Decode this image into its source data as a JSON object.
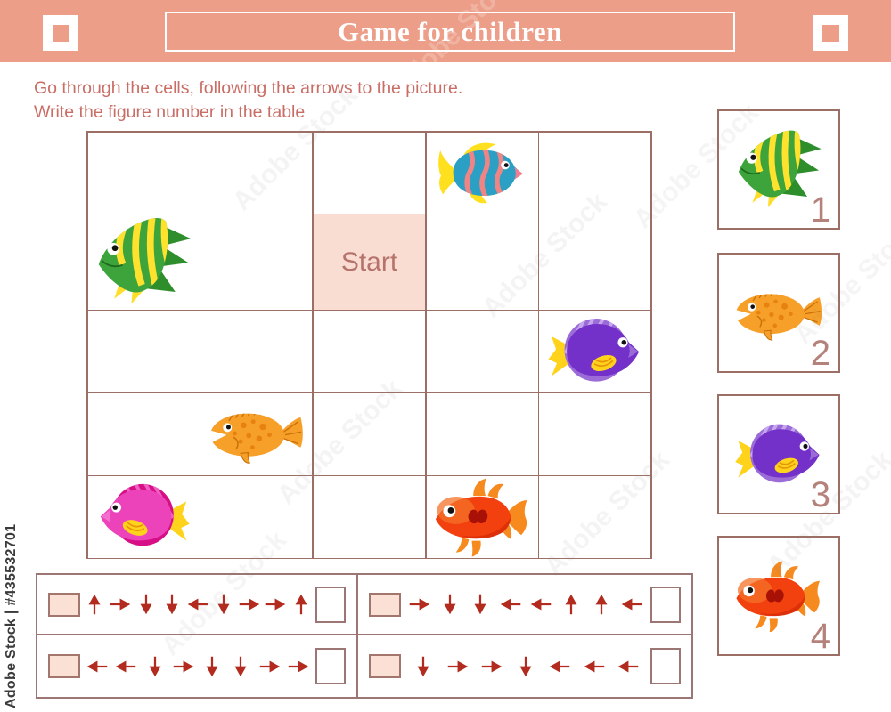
{
  "header": {
    "title": "Game for children"
  },
  "instructions": {
    "line1": "Go through the cells, following the arrows to the picture.",
    "line2": "Write the figure number in the table"
  },
  "grid": {
    "rows": 5,
    "cols": 5,
    "start_label": "Start",
    "start_cell": {
      "row": 2,
      "col": 3
    },
    "fish_cells": [
      {
        "row": 1,
        "col": 4,
        "fish": "blue-striped-fish"
      },
      {
        "row": 2,
        "col": 1,
        "fish": "green-angelfish"
      },
      {
        "row": 3,
        "col": 5,
        "fish": "purple-tang-fish"
      },
      {
        "row": 4,
        "col": 2,
        "fish": "orange-spotted-fish"
      },
      {
        "row": 5,
        "col": 1,
        "fish": "pink-tang-fish"
      },
      {
        "row": 5,
        "col": 4,
        "fish": "red-fish"
      }
    ]
  },
  "answer_key": {
    "items": [
      {
        "number": "1",
        "fish": "green-angelfish"
      },
      {
        "number": "2",
        "fish": "orange-spotted-fish"
      },
      {
        "number": "3",
        "fish": "purple-tang-fish"
      },
      {
        "number": "4",
        "fish": "red-fish"
      }
    ]
  },
  "arrow_table": {
    "cells": [
      {
        "position": "top-left",
        "arrows": [
          "up",
          "right",
          "down",
          "down",
          "left",
          "down",
          "right",
          "right",
          "up"
        ]
      },
      {
        "position": "top-right",
        "arrows": [
          "right",
          "down",
          "down",
          "left",
          "left",
          "up",
          "up",
          "left"
        ]
      },
      {
        "position": "bottom-left",
        "arrows": [
          "left",
          "left",
          "down",
          "right",
          "down",
          "down",
          "right",
          "right"
        ]
      },
      {
        "position": "bottom-right",
        "arrows": [
          "down",
          "right",
          "right",
          "down",
          "left",
          "left",
          "left"
        ]
      }
    ]
  },
  "watermark": {
    "side_text": "Adobe Stock | #435532701",
    "pattern_text": "Adobe Stock"
  },
  "colors": {
    "header_bg": "#EC9E88",
    "accent_text": "#C96E66",
    "grid_line": "#9C6F66",
    "start_bg": "#FADDD2",
    "start_text": "#B5736C",
    "arrow": "#B22B1E",
    "number": "#B5827B",
    "box_border": "#9B7674",
    "pink_box": "#FBE0D6"
  }
}
